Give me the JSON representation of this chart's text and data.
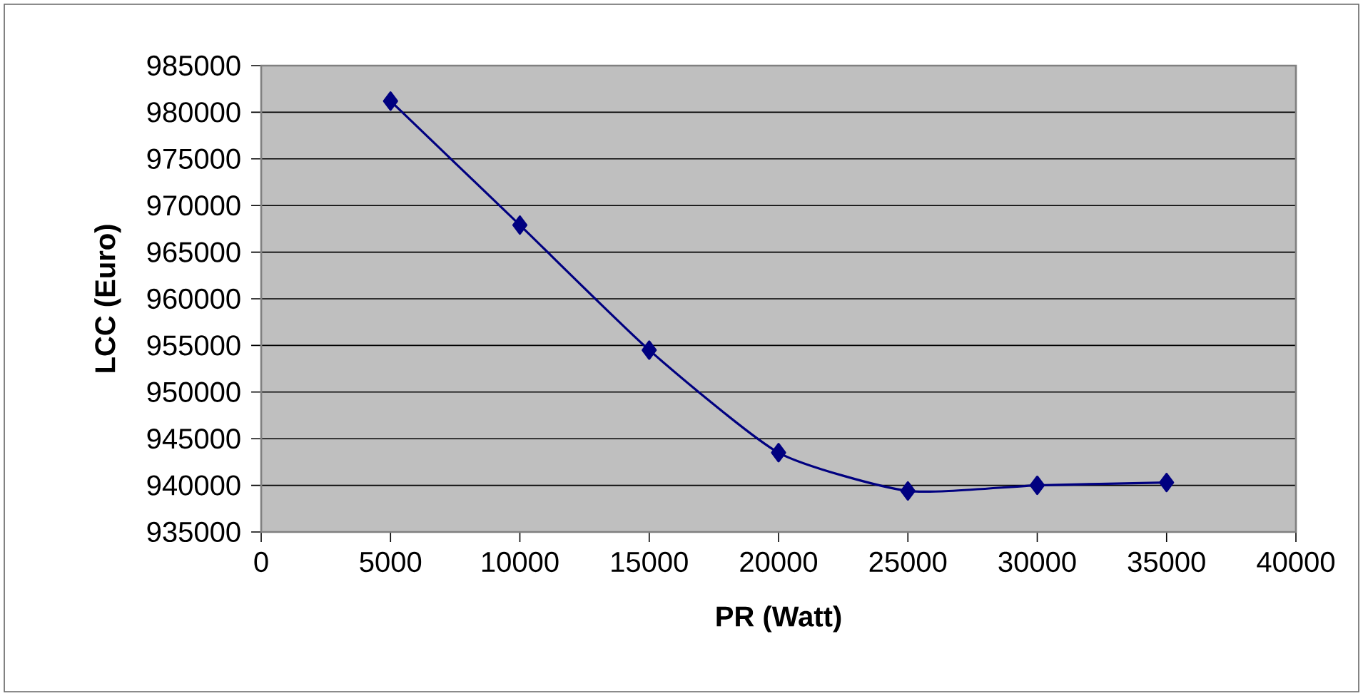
{
  "chart_data": {
    "type": "line",
    "xlabel": "PR (Watt)",
    "ylabel": "LCC (Euro)",
    "x": [
      5000,
      10000,
      15000,
      20000,
      25000,
      30000,
      35000
    ],
    "series": [
      {
        "color": "#000080",
        "values": [
          981200,
          967900,
          954500,
          943500,
          939400,
          940000,
          940300
        ]
      }
    ],
    "xlim": [
      0,
      40000
    ],
    "ylim": [
      935000,
      985000
    ],
    "xticks": [
      0,
      5000,
      10000,
      15000,
      20000,
      25000,
      30000,
      35000,
      40000
    ],
    "yticks": [
      935000,
      940000,
      945000,
      950000,
      955000,
      960000,
      965000,
      970000,
      975000,
      980000,
      985000
    ],
    "grid": "y",
    "marker": "diamond",
    "line_style": "solid"
  }
}
